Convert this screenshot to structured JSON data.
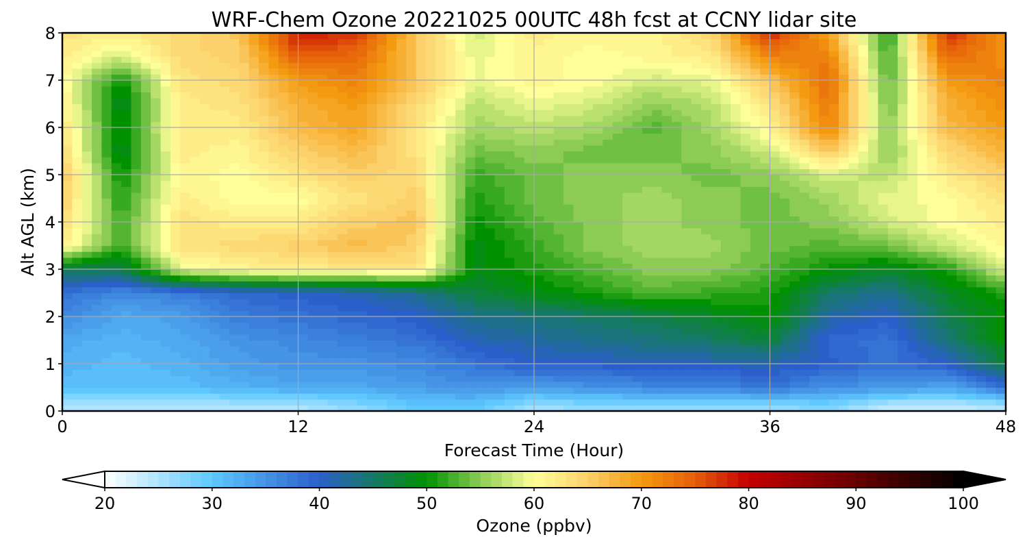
{
  "chart_data": {
    "type": "heatmap",
    "title": "WRF-Chem Ozone  20221025 00UTC 48h fcst at CCNY lidar site",
    "xlabel": "Forecast Time (Hour)",
    "ylabel": "Alt AGL (km)",
    "xlim": [
      0,
      48
    ],
    "ylim": [
      0,
      8
    ],
    "x_ticks": [
      "0",
      "12",
      "24",
      "36",
      "48"
    ],
    "y_ticks": [
      "0",
      "1",
      "2",
      "3",
      "4",
      "5",
      "6",
      "7",
      "8"
    ],
    "grid": true,
    "x_hours": [
      0,
      3,
      6,
      9,
      12,
      15,
      18,
      21,
      24,
      27,
      30,
      33,
      36,
      39,
      42,
      45,
      48
    ],
    "y_km": [
      0.1,
      0.5,
      1,
      1.5,
      2,
      2.5,
      3,
      3.5,
      4,
      4.5,
      5,
      5.5,
      6,
      6.5,
      7,
      7.5,
      8
    ],
    "values_ppbv": [
      [
        25,
        25,
        25,
        25,
        25,
        27,
        30,
        30,
        26,
        27,
        27,
        27,
        27,
        28,
        24,
        24,
        25
      ],
      [
        31,
        31,
        31,
        32,
        33,
        33,
        34,
        35,
        34,
        35,
        36,
        36,
        38,
        35,
        35,
        33,
        38
      ],
      [
        32,
        31,
        32,
        34,
        35,
        35,
        36,
        38,
        40,
        40,
        41,
        41,
        41,
        40,
        38,
        40,
        47
      ],
      [
        33,
        32,
        33,
        35,
        36,
        37,
        38,
        41,
        42,
        43,
        44,
        45,
        47,
        39,
        38,
        44,
        50
      ],
      [
        36,
        33,
        34,
        37,
        38,
        39,
        40,
        43,
        44,
        45,
        46,
        48,
        50,
        42,
        40,
        46,
        50
      ],
      [
        38,
        36,
        37,
        39,
        40,
        41,
        43,
        47,
        49,
        51,
        53,
        52,
        51,
        45,
        43,
        48,
        51
      ],
      [
        46,
        46,
        59,
        61,
        62,
        62,
        63,
        49,
        51,
        53,
        55,
        55,
        53,
        50,
        48,
        51,
        58
      ],
      [
        62,
        52,
        63,
        64,
        65,
        67,
        65,
        49,
        52,
        55,
        56,
        56,
        54,
        53,
        54,
        58,
        61
      ],
      [
        64,
        52,
        63,
        62,
        62,
        65,
        66,
        50,
        53,
        55,
        56,
        55,
        54,
        55,
        58,
        60,
        62
      ],
      [
        65,
        51,
        62,
        60,
        60,
        63,
        65,
        51,
        54,
        55,
        56,
        55,
        54,
        56,
        59,
        60,
        63
      ],
      [
        66,
        50,
        61,
        60,
        63,
        65,
        64,
        52,
        54,
        55,
        55,
        54,
        55,
        58,
        57,
        62,
        65
      ],
      [
        64,
        48,
        62,
        61,
        65,
        67,
        63,
        54,
        55,
        54,
        54,
        55,
        58,
        66,
        55,
        64,
        68
      ],
      [
        63,
        49,
        62,
        62,
        67,
        69,
        63,
        56,
        57,
        56,
        53,
        56,
        61,
        72,
        55,
        67,
        70
      ],
      [
        62,
        48,
        62,
        63,
        68,
        70,
        64,
        57,
        59,
        58,
        55,
        57,
        63,
        73,
        54,
        68,
        71
      ],
      [
        61,
        50,
        63,
        64,
        70,
        72,
        66,
        59,
        61,
        60,
        58,
        59,
        66,
        74,
        53,
        70,
        72
      ],
      [
        62,
        58,
        64,
        65,
        75,
        74,
        66,
        59,
        61,
        60,
        61,
        62,
        72,
        72,
        52,
        74,
        71
      ],
      [
        63,
        62,
        64,
        66,
        79,
        77,
        66,
        58,
        62,
        61,
        61,
        64,
        78,
        69,
        51,
        78,
        70
      ]
    ],
    "colorbar": {
      "label": "Ozone  (ppbv)",
      "min": 20,
      "max": 100,
      "ticks": [
        "20",
        "30",
        "40",
        "50",
        "60",
        "70",
        "80",
        "90",
        "100"
      ],
      "extend": "both",
      "colors": [
        {
          "v": 20,
          "c": "#ffffff"
        },
        {
          "v": 30,
          "c": "#5ec8ff"
        },
        {
          "v": 40,
          "c": "#2b5fcb"
        },
        {
          "v": 50,
          "c": "#009100"
        },
        {
          "v": 55,
          "c": "#8ccc55"
        },
        {
          "v": 60,
          "c": "#ffff99"
        },
        {
          "v": 65,
          "c": "#fcd06a"
        },
        {
          "v": 70,
          "c": "#f49a10"
        },
        {
          "v": 75,
          "c": "#e55e0a"
        },
        {
          "v": 80,
          "c": "#c50000"
        },
        {
          "v": 90,
          "c": "#680000"
        },
        {
          "v": 100,
          "c": "#000000"
        }
      ]
    }
  }
}
